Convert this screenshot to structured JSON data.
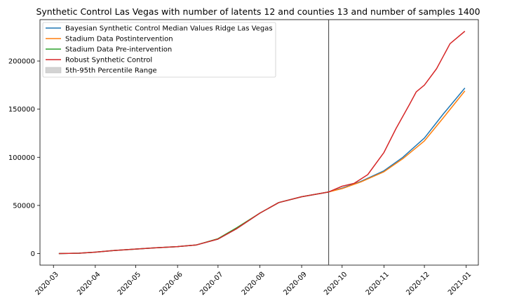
{
  "chart_data": {
    "type": "line",
    "title": "Synthetic Control Las Vegas with number of latents 12 and counties 13 and number of samples 1400",
    "xlabel": "",
    "ylabel": "",
    "x_ticks": [
      "2020-03",
      "2020-04",
      "2020-05",
      "2020-06",
      "2020-07",
      "2020-08",
      "2020-09",
      "2020-10",
      "2020-11",
      "2020-12",
      "2021-01"
    ],
    "y_ticks": [
      "0",
      "50000",
      "100000",
      "150000",
      "200000"
    ],
    "ylim": [
      -12000,
      243000
    ],
    "xlim": [
      "2020-02-20",
      "2021-01-10"
    ],
    "intervention_date": "2020-09-21",
    "grid": false,
    "legend_position": "top-left",
    "legend": [
      {
        "label": "Bayesian Synthetic Control Median Values Ridge Las Vegas",
        "color": "#1f77b4"
      },
      {
        "label": "Stadium Data Postintervention",
        "color": "#ff7f0e"
      },
      {
        "label": "Stadium Data Pre-intervention",
        "color": "#2ca02c"
      },
      {
        "label": "Robust Synthetic Control",
        "color": "#d62728"
      },
      {
        "label": "5th-95th Percentile Range",
        "color": "#d3d3d3"
      }
    ],
    "series": [
      {
        "name": "Bayesian Synthetic Control Median Values Ridge Las Vegas",
        "color": "#1f77b4",
        "x": [
          "2020-03-05",
          "2020-03-20",
          "2020-04-01",
          "2020-04-15",
          "2020-05-01",
          "2020-05-15",
          "2020-06-01",
          "2020-06-15",
          "2020-07-01",
          "2020-07-15",
          "2020-08-01",
          "2020-08-15",
          "2020-09-01",
          "2020-09-21",
          "2020-10-01",
          "2020-10-15",
          "2020-11-01",
          "2020-11-15",
          "2020-12-01",
          "2020-12-15",
          "2020-12-31"
        ],
        "y": [
          0,
          400,
          1500,
          3200,
          4700,
          5900,
          7200,
          9000,
          15000,
          26000,
          42000,
          53000,
          59000,
          64000,
          68000,
          75000,
          86000,
          100000,
          120000,
          145000,
          172000
        ]
      },
      {
        "name": "Stadium Data Postintervention",
        "color": "#ff7f0e",
        "x": [
          "2020-09-21",
          "2020-10-01",
          "2020-10-15",
          "2020-11-01",
          "2020-11-15",
          "2020-12-01",
          "2020-12-15",
          "2020-12-31"
        ],
        "y": [
          64000,
          67500,
          74500,
          85000,
          98500,
          117000,
          141000,
          169000
        ]
      },
      {
        "name": "Stadium Data Pre-intervention",
        "color": "#2ca02c",
        "x": [
          "2020-03-05",
          "2020-03-20",
          "2020-04-01",
          "2020-04-15",
          "2020-05-01",
          "2020-05-15",
          "2020-06-01",
          "2020-06-15",
          "2020-07-01",
          "2020-07-15",
          "2020-08-01",
          "2020-08-15",
          "2020-09-01",
          "2020-09-21"
        ],
        "y": [
          0,
          400,
          1500,
          3200,
          4700,
          5900,
          7200,
          9000,
          15500,
          27000,
          42000,
          53000,
          59000,
          64000
        ]
      },
      {
        "name": "Robust Synthetic Control",
        "color": "#d62728",
        "x": [
          "2020-03-05",
          "2020-03-20",
          "2020-04-01",
          "2020-04-15",
          "2020-05-01",
          "2020-05-15",
          "2020-06-01",
          "2020-06-15",
          "2020-07-01",
          "2020-07-15",
          "2020-08-01",
          "2020-08-15",
          "2020-09-01",
          "2020-09-21",
          "2020-10-01",
          "2020-10-10",
          "2020-10-20",
          "2020-11-01",
          "2020-11-10",
          "2020-11-20",
          "2020-11-25",
          "2020-12-01",
          "2020-12-10",
          "2020-12-15",
          "2020-12-20",
          "2020-12-31"
        ],
        "y": [
          0,
          400,
          1500,
          3200,
          4700,
          5900,
          7200,
          9000,
          15000,
          26000,
          42000,
          53000,
          59000,
          64000,
          70000,
          73000,
          82000,
          105000,
          130000,
          155000,
          168000,
          175000,
          192000,
          205000,
          218000,
          231000
        ]
      }
    ]
  }
}
